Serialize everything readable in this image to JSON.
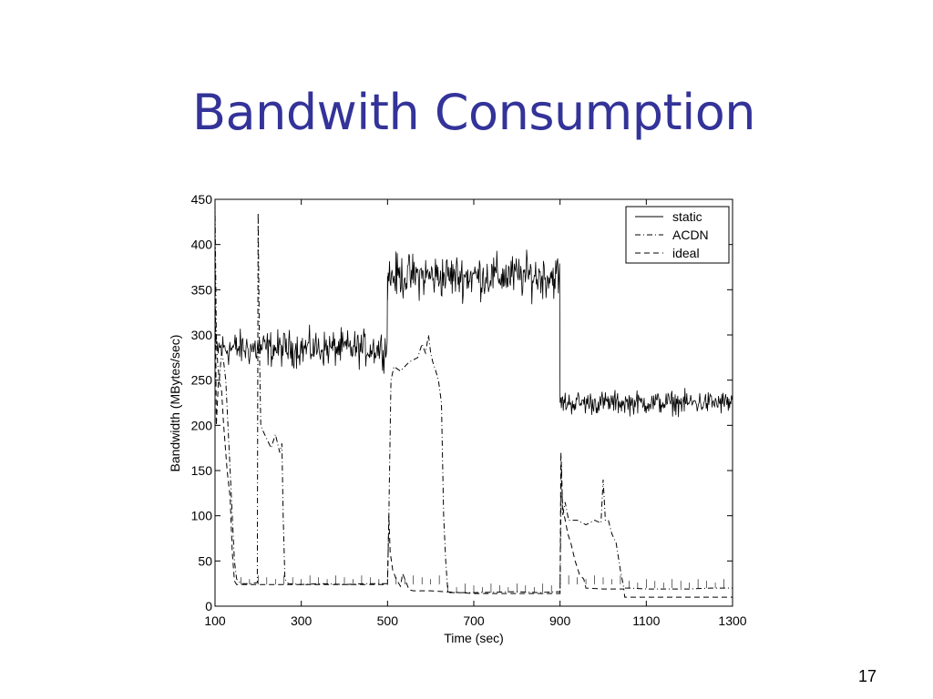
{
  "slide": {
    "title": "Bandwith Consumption",
    "page_number": "17"
  },
  "chart_data": {
    "type": "line",
    "xlabel": "Time (sec)",
    "ylabel": "Bandwidth (MBytes/sec)",
    "xlim": [
      100,
      1300
    ],
    "ylim": [
      0,
      450
    ],
    "xticks": [
      100,
      300,
      500,
      700,
      900,
      1100,
      1300
    ],
    "yticks": [
      0,
      50,
      100,
      150,
      200,
      250,
      300,
      350,
      400,
      450
    ],
    "grid": false,
    "legend": "top-right",
    "series": [
      {
        "name": "static",
        "style": "solid",
        "segments": [
          {
            "x_start": 100,
            "x_end": 500,
            "mean": 285,
            "noise": 14
          },
          {
            "x_start": 500,
            "x_end": 900,
            "mean": 365,
            "noise": 17
          },
          {
            "x_start": 900,
            "x_end": 1300,
            "mean": 225,
            "noise": 9
          }
        ]
      },
      {
        "name": "ACDN",
        "style": "dashdot",
        "points": [
          [
            100,
            445
          ],
          [
            103,
            300
          ],
          [
            106,
            270
          ],
          [
            110,
            250
          ],
          [
            115,
            280
          ],
          [
            120,
            270
          ],
          [
            125,
            250
          ],
          [
            130,
            200
          ],
          [
            135,
            150
          ],
          [
            140,
            100
          ],
          [
            145,
            50
          ],
          [
            150,
            30
          ],
          [
            160,
            25
          ],
          [
            180,
            25
          ],
          [
            198,
            26
          ],
          [
            200,
            435
          ],
          [
            203,
            280
          ],
          [
            206,
            200
          ],
          [
            210,
            195
          ],
          [
            220,
            185
          ],
          [
            230,
            175
          ],
          [
            240,
            190
          ],
          [
            250,
            170
          ],
          [
            255,
            180
          ],
          [
            258,
            100
          ],
          [
            262,
            30
          ],
          [
            270,
            25
          ],
          [
            300,
            24
          ],
          [
            350,
            25
          ],
          [
            400,
            24
          ],
          [
            450,
            25
          ],
          [
            495,
            25
          ],
          [
            500,
            25
          ],
          [
            503,
            100
          ],
          [
            508,
            250
          ],
          [
            515,
            265
          ],
          [
            530,
            260
          ],
          [
            550,
            270
          ],
          [
            570,
            275
          ],
          [
            580,
            290
          ],
          [
            588,
            280
          ],
          [
            595,
            300
          ],
          [
            600,
            280
          ],
          [
            605,
            270
          ],
          [
            612,
            260
          ],
          [
            618,
            250
          ],
          [
            625,
            225
          ],
          [
            630,
            100
          ],
          [
            635,
            50
          ],
          [
            640,
            15
          ],
          [
            700,
            15
          ],
          [
            800,
            16
          ],
          [
            850,
            15
          ],
          [
            895,
            16
          ],
          [
            900,
            16
          ],
          [
            903,
            160
          ],
          [
            906,
            100
          ],
          [
            912,
            115
          ],
          [
            920,
            95
          ],
          [
            940,
            95
          ],
          [
            960,
            90
          ],
          [
            980,
            95
          ],
          [
            995,
            92
          ],
          [
            1000,
            140
          ],
          [
            1005,
            95
          ],
          [
            1012,
            95
          ],
          [
            1020,
            80
          ],
          [
            1030,
            70
          ],
          [
            1040,
            40
          ],
          [
            1048,
            20
          ],
          [
            1060,
            20
          ],
          [
            1100,
            19
          ],
          [
            1150,
            19
          ],
          [
            1200,
            19
          ],
          [
            1250,
            20
          ],
          [
            1300,
            20
          ]
        ]
      },
      {
        "name": "ideal",
        "style": "dashed",
        "points": [
          [
            100,
            400
          ],
          [
            103,
            200
          ],
          [
            108,
            250
          ],
          [
            115,
            240
          ],
          [
            120,
            200
          ],
          [
            128,
            150
          ],
          [
            135,
            120
          ],
          [
            140,
            60
          ],
          [
            145,
            28
          ],
          [
            150,
            24
          ],
          [
            200,
            24
          ],
          [
            300,
            24
          ],
          [
            400,
            24
          ],
          [
            495,
            24
          ],
          [
            500,
            24
          ],
          [
            503,
            100
          ],
          [
            506,
            60
          ],
          [
            512,
            40
          ],
          [
            520,
            30
          ],
          [
            530,
            22
          ],
          [
            535,
            36
          ],
          [
            540,
            30
          ],
          [
            550,
            18
          ],
          [
            560,
            17
          ],
          [
            600,
            17
          ],
          [
            700,
            14
          ],
          [
            800,
            14
          ],
          [
            895,
            14
          ],
          [
            900,
            14
          ],
          [
            902,
            170
          ],
          [
            906,
            110
          ],
          [
            910,
            100
          ],
          [
            918,
            80
          ],
          [
            925,
            70
          ],
          [
            935,
            50
          ],
          [
            945,
            35
          ],
          [
            955,
            30
          ],
          [
            960,
            20
          ],
          [
            1000,
            19
          ],
          [
            1048,
            19
          ],
          [
            1050,
            10
          ],
          [
            1100,
            10
          ],
          [
            1200,
            10
          ],
          [
            1300,
            10
          ]
        ]
      }
    ]
  }
}
